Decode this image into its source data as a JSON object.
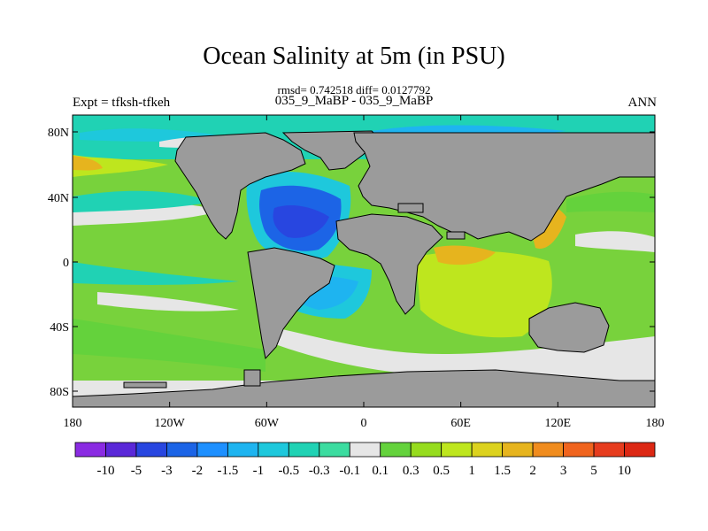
{
  "title": "Ocean Salinity at 5m (in PSU)",
  "subtitle": "rmsd= 0.742518 diff= 0.0127792",
  "left_label": "Expt = tfksh-tfkeh",
  "center_label": "035_9_MaBP - 035_9_MaBP",
  "right_label": "ANN",
  "map": {
    "x_ticks": [
      "180",
      "120W",
      "60W",
      "0",
      "60E",
      "120E",
      "180"
    ],
    "y_ticks": [
      "80N",
      "40N",
      "0",
      "40S",
      "80S"
    ],
    "land_color": "#9b9b9b"
  },
  "colorbar": {
    "labels": [
      "-10",
      "-5",
      "-3",
      "-2",
      "-1.5",
      "-1",
      "-0.5",
      "-0.3",
      "-0.1",
      "0.1",
      "0.3",
      "0.5",
      "1",
      "1.5",
      "2",
      "3",
      "5",
      "10"
    ],
    "colors": [
      "#8a2be2",
      "#5a28d8",
      "#2846e0",
      "#1c64e6",
      "#1e90ff",
      "#1eb4f0",
      "#1ec8dc",
      "#20d2b4",
      "#3cdca0",
      "#e6e6e6",
      "#64d23c",
      "#96dc1e",
      "#bee61e",
      "#dcd21e",
      "#e6b41e",
      "#f08c1e",
      "#f0641e",
      "#e63c1e",
      "#dc2814"
    ]
  }
}
